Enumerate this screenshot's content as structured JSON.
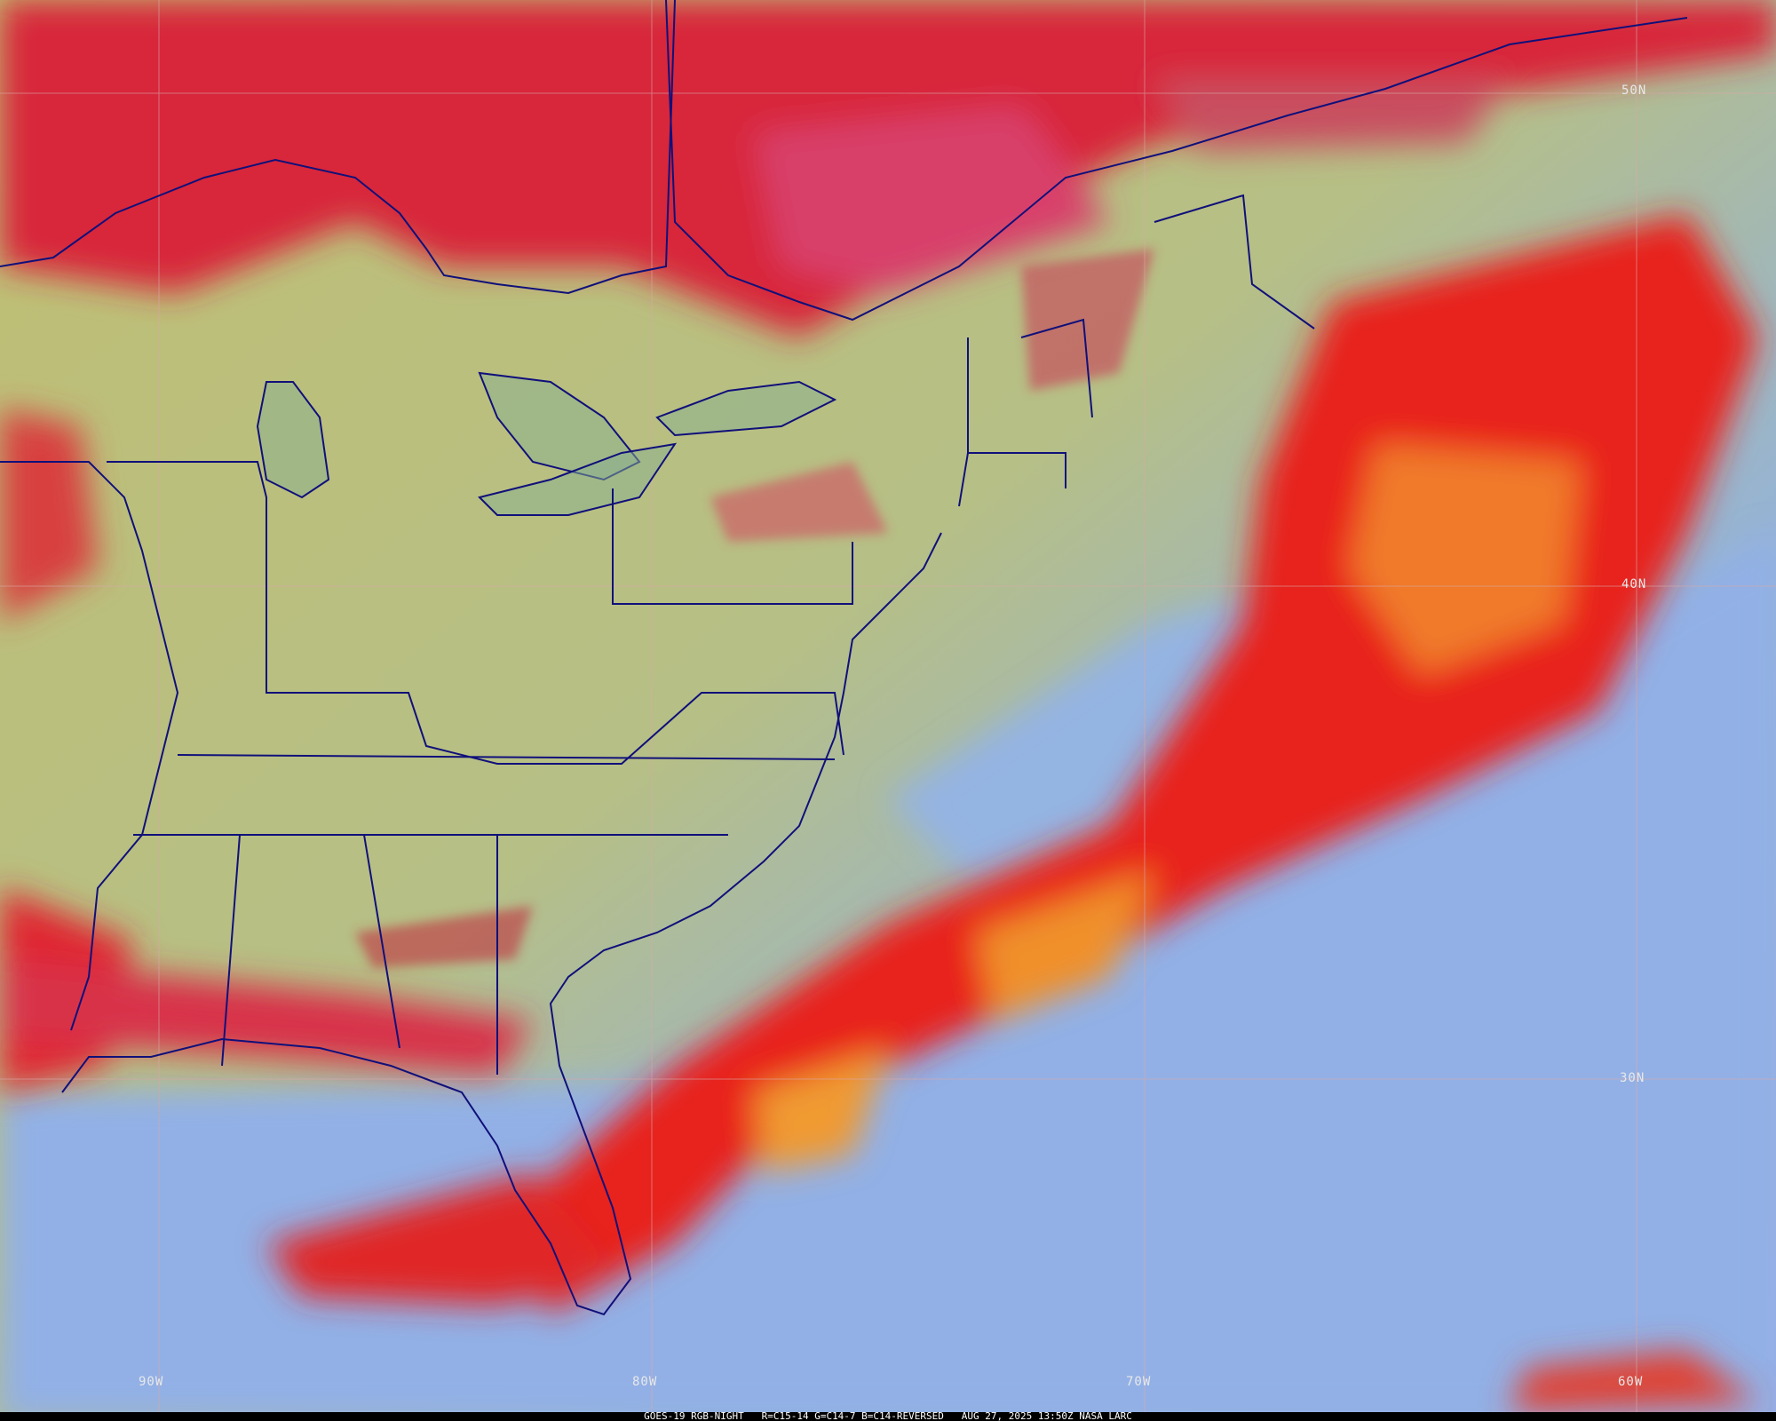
{
  "caption": {
    "satellite": "GOES-19 RGB-NIGHT",
    "channels": "R=C15-14 G=C14-7 B=C14-REVERSED",
    "datetime": "AUG 27, 2025 13:50Z",
    "source": "NASA LARC"
  },
  "grid": {
    "latitudes": [
      "50N",
      "40N",
      "30N"
    ],
    "longitudes": [
      "90W",
      "80W",
      "70W",
      "60W"
    ]
  },
  "colors": {
    "clear_land": "#b8c07a",
    "clear_ocean": "#8fb0e0",
    "high_cloud": "#e8202a",
    "mid_cloud": "#f09030",
    "boundaries": "#101080",
    "grid": "#c8a0a0"
  }
}
